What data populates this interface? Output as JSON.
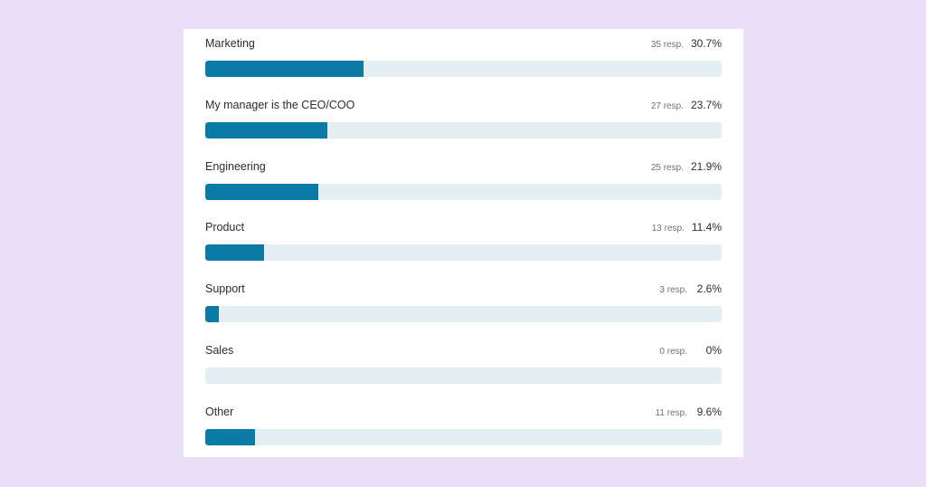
{
  "chart_data": {
    "type": "bar",
    "orientation": "horizontal",
    "categories": [
      "Marketing",
      "My manager is the CEO/COO",
      "Engineering",
      "Product",
      "Support",
      "Sales",
      "Other"
    ],
    "responses": [
      "35 resp.",
      "27 resp.",
      "25 resp.",
      "13 resp.",
      "3 resp.",
      "0 resp.",
      "11 resp."
    ],
    "percent_labels": [
      "30.7%",
      "23.7%",
      "21.9%",
      "11.4%",
      "2.6%",
      "0%",
      "9.6%"
    ],
    "values": [
      30.7,
      23.7,
      21.9,
      11.4,
      2.6,
      0,
      9.6
    ],
    "xlim": [
      0,
      100
    ],
    "colors": {
      "fill": "#0a7ba6",
      "track": "#e4eff3",
      "card": "#ffffff",
      "background": "#e9e0f7"
    }
  }
}
